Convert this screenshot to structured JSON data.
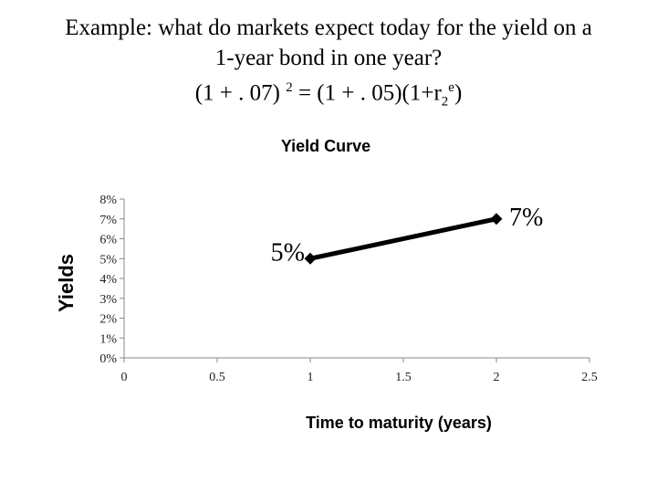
{
  "heading": {
    "line1": "Example: what do markets expect today for the yield on a",
    "line2": "1-year bond in one year?",
    "eq_a": "(1 + . 07)",
    "eq_exp": "2",
    "eq_b": "= (1 + . 05)(1+r",
    "eq_sub": "2",
    "eq_sup": "e",
    "eq_c": ")"
  },
  "chart_data": {
    "type": "line",
    "title": "Yield Curve",
    "xlabel": "Time to maturity (years)",
    "ylabel": "Yields",
    "xlim": [
      0,
      2.5
    ],
    "ylim": [
      0,
      0.08
    ],
    "x_ticks": [
      "0",
      "0.5",
      "1",
      "1.5",
      "2",
      "2.5"
    ],
    "y_ticks": [
      "0%",
      "1%",
      "2%",
      "3%",
      "4%",
      "5%",
      "6%",
      "7%",
      "8%"
    ],
    "grid": false,
    "legend": "none",
    "series": [
      {
        "x": [
          1,
          2
        ],
        "y": [
          0.05,
          0.07
        ],
        "labels": [
          "5%",
          "7%"
        ],
        "color": "#000000",
        "marker": "diamond"
      }
    ]
  }
}
